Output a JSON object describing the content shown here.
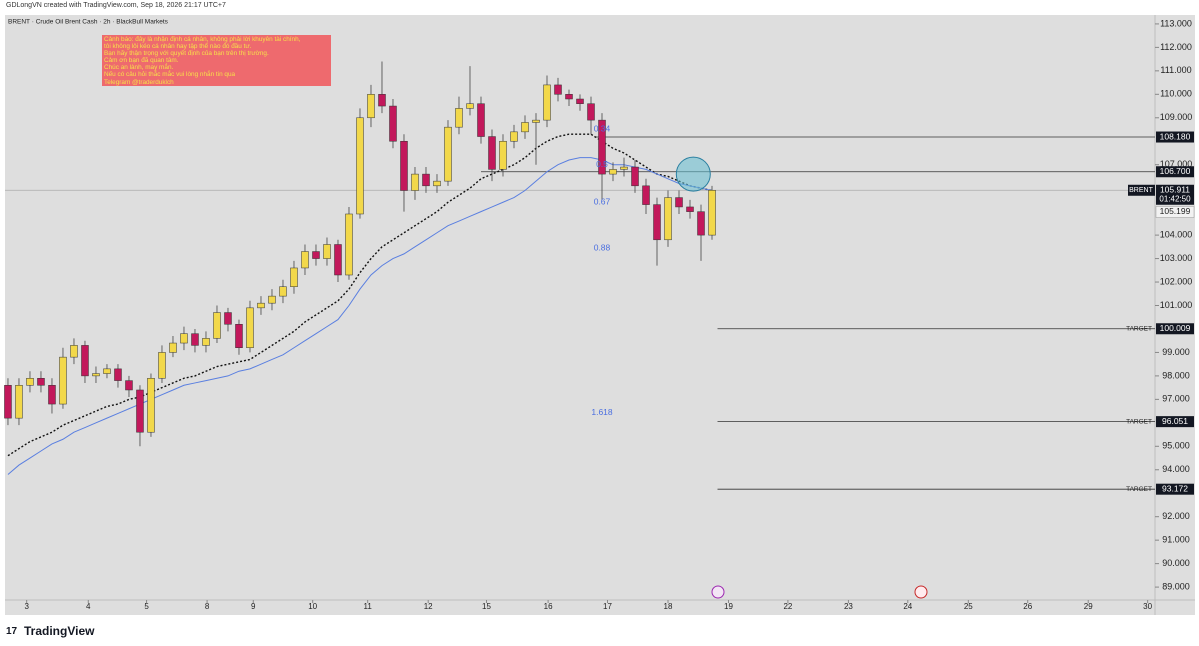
{
  "header": "GDLongVN created with TradingView.com, Sep 18, 2026 21:17 UTC+7",
  "footer": "TradingView",
  "chart_data": {
    "type": "candlestick",
    "title": "BRENT · Crude Oil Brent Cash · 2h · BlackBull Markets",
    "note": [
      "Cảnh báo: đây là nhận định cá nhân, không phải lời khuyên tài chính,",
      "tôi không lôi kéo cá nhân hay tập thể nào đó đầu tư.",
      "Bạn hãy thận trọng với quyết định của bạn trên thị trường.",
      "Cảm ơn bạn đã quan tâm.",
      "Chúc an lành, may mắn.",
      "Nếu có câu hỏi thắc mắc vui lòng nhắn tin qua",
      "Telegram @traderduklch"
    ],
    "up_color": "#f2d84a",
    "down_color": "#c2185b",
    "open": [
      97.6,
      96.2,
      97.6,
      97.9,
      97.6,
      96.8,
      98.8,
      99.3,
      98.0,
      98.1,
      98.3,
      97.8,
      97.4,
      95.6,
      97.9,
      99.0,
      99.4,
      99.8,
      99.3,
      99.6,
      100.7,
      100.2,
      99.2,
      100.9,
      101.1,
      101.4,
      101.8,
      102.6,
      103.3,
      103.0,
      103.6,
      102.3,
      104.9,
      109.0,
      110.0,
      109.5,
      108.0,
      105.9,
      106.6,
      106.1,
      106.3,
      108.6,
      109.4,
      109.6,
      108.2,
      106.8,
      108.0,
      108.4,
      108.8,
      108.9,
      110.4,
      110.0,
      109.8,
      109.6,
      108.9,
      106.6,
      106.8,
      106.9,
      106.1,
      105.3,
      103.8,
      105.6,
      105.2,
      105.0,
      104.0
    ],
    "high": [
      97.9,
      97.9,
      98.2,
      98.2,
      97.9,
      99.2,
      99.6,
      99.5,
      98.4,
      98.5,
      98.5,
      98.0,
      97.6,
      98.1,
      99.3,
      99.7,
      100.1,
      100.0,
      99.9,
      101.0,
      100.9,
      100.4,
      101.2,
      101.4,
      101.7,
      102.1,
      102.9,
      103.6,
      103.6,
      103.9,
      103.8,
      105.2,
      109.4,
      110.4,
      111.4,
      109.8,
      108.3,
      106.9,
      106.9,
      106.6,
      108.9,
      109.9,
      111.2,
      109.9,
      108.5,
      108.3,
      108.7,
      109.1,
      109.2,
      110.8,
      110.7,
      110.2,
      110.0,
      109.9,
      109.2,
      107.1,
      107.3,
      107.2,
      106.4,
      105.6,
      105.9,
      105.9,
      105.5,
      105.3,
      106.1
    ],
    "low": [
      95.9,
      95.9,
      97.3,
      97.3,
      96.4,
      96.6,
      98.5,
      97.7,
      97.7,
      97.9,
      97.5,
      97.1,
      95.0,
      95.4,
      97.7,
      98.8,
      99.1,
      99.0,
      99.0,
      99.4,
      99.9,
      98.9,
      99.0,
      100.6,
      100.8,
      101.1,
      101.5,
      102.3,
      102.7,
      102.7,
      102.0,
      102.1,
      104.7,
      108.6,
      109.2,
      107.7,
      105.0,
      105.5,
      105.8,
      105.8,
      106.1,
      108.3,
      109.1,
      107.9,
      106.3,
      106.5,
      107.7,
      108.1,
      107.0,
      108.6,
      109.7,
      109.5,
      109.3,
      108.3,
      105.5,
      106.3,
      106.5,
      105.8,
      104.9,
      102.7,
      103.5,
      104.9,
      104.7,
      102.9,
      103.8
    ],
    "close": [
      96.2,
      97.6,
      97.9,
      97.6,
      96.8,
      98.8,
      99.3,
      98.0,
      98.1,
      98.3,
      97.8,
      97.4,
      95.6,
      97.9,
      99.0,
      99.4,
      99.8,
      99.3,
      99.6,
      100.7,
      100.2,
      99.2,
      100.9,
      101.1,
      101.4,
      101.8,
      102.6,
      103.3,
      103.0,
      103.6,
      102.3,
      104.9,
      109.0,
      110.0,
      109.5,
      108.0,
      105.9,
      106.6,
      106.1,
      106.3,
      108.6,
      109.4,
      109.6,
      108.2,
      106.8,
      108.0,
      108.4,
      108.8,
      108.9,
      110.4,
      110.0,
      109.8,
      109.6,
      108.9,
      106.6,
      106.8,
      106.9,
      106.1,
      105.3,
      103.8,
      105.6,
      105.2,
      105.0,
      104.0,
      105.911
    ],
    "lines": [
      {
        "color": "#111111",
        "style": "dotted",
        "values": [
          94.6,
          94.9,
          95.2,
          95.4,
          95.6,
          95.9,
          96.1,
          96.3,
          96.5,
          96.7,
          96.8,
          97.0,
          97.1,
          97.3,
          97.5,
          97.7,
          97.9,
          98.0,
          98.2,
          98.4,
          98.5,
          98.6,
          98.7,
          99.0,
          99.3,
          99.6,
          99.9,
          100.3,
          100.6,
          100.9,
          101.2,
          101.7,
          102.4,
          103.0,
          103.5,
          103.8,
          104.1,
          104.4,
          104.7,
          105.0,
          105.4,
          105.7,
          106.0,
          106.4,
          106.6,
          106.8,
          107.0,
          107.3,
          107.7,
          108.0,
          108.2,
          108.3,
          108.3,
          108.3,
          108.0,
          107.7,
          107.5,
          107.2,
          106.9,
          106.6,
          106.5,
          106.3,
          106.1,
          106.0,
          105.9
        ]
      },
      {
        "color": "#5a7fe0",
        "style": "solid",
        "values": [
          93.8,
          94.2,
          94.5,
          94.8,
          95.1,
          95.3,
          95.6,
          95.8,
          96.0,
          96.2,
          96.4,
          96.6,
          96.8,
          97.0,
          97.2,
          97.4,
          97.6,
          97.7,
          97.8,
          97.9,
          98.0,
          98.2,
          98.3,
          98.5,
          98.7,
          98.9,
          99.2,
          99.5,
          99.8,
          100.1,
          100.4,
          101.0,
          101.7,
          102.3,
          102.7,
          103.0,
          103.2,
          103.5,
          103.8,
          104.1,
          104.4,
          104.6,
          104.8,
          105.0,
          105.2,
          105.4,
          105.6,
          105.9,
          106.3,
          106.7,
          107.0,
          107.2,
          107.3,
          107.3,
          107.2,
          107.0,
          107.0,
          106.9,
          106.8,
          106.6,
          106.4,
          106.2,
          106.1,
          106.0,
          105.9
        ]
      }
    ],
    "levels": [
      {
        "price": {
          "value": 108.18,
          "label": "108.180"
        },
        "x_start": 53.3
      },
      {
        "price": {
          "value": 106.7,
          "label": "106.700"
        },
        "x_start": 43.0
      },
      {
        "price": 100.009,
        "x_start": 64.5,
        "name": "TARGET"
      },
      {
        "price": 96.051,
        "x_start": 64.5,
        "name": "TARGET"
      },
      {
        "price": 93.172,
        "x_start": 64.5,
        "name": "TARGET"
      }
    ],
    "fib_x": 54.0,
    "fib_levels": [
      {
        "level": 0.34,
        "price": 108.52
      },
      {
        "level": 0.5,
        "price": 106.99
      },
      {
        "level": 0.67,
        "price": 105.41
      },
      {
        "level": 0.88,
        "price": 103.45
      },
      {
        "level": 1.618,
        "price": 96.42
      }
    ],
    "highlight": {
      "x": 62.3,
      "price": 106.6
    },
    "symbol_tag": "BRENT",
    "last_price": 105.911,
    "countdown": "01:42:50",
    "prev_price": 105.199,
    "ylim": [
      88.45,
      113.38
    ],
    "yticks": [
      {
        "value": 113,
        "label": "113.000"
      },
      {
        "value": 112,
        "label": "112.000"
      },
      {
        "value": 111,
        "label": "111.000"
      },
      {
        "value": 110,
        "label": "110.000"
      },
      {
        "value": 109,
        "label": "109.000"
      },
      {
        "value": 107,
        "label": "107.000"
      },
      {
        "value": 104,
        "label": "104.000"
      },
      {
        "value": 103,
        "label": "103.000"
      },
      {
        "value": 102,
        "label": "102.000"
      },
      {
        "value": 101,
        "label": "101.000"
      },
      {
        "value": 99,
        "label": "99.000"
      },
      {
        "value": 98,
        "label": "98.000"
      },
      {
        "value": 97,
        "label": "97.000"
      },
      {
        "value": 95,
        "label": "95.000"
      },
      {
        "value": 94,
        "label": "94.000"
      },
      {
        "value": 92,
        "label": "92.000"
      },
      {
        "value": 91,
        "label": "91.000"
      },
      {
        "value": 90,
        "label": "90.000"
      },
      {
        "value": 89,
        "label": "89.000"
      }
    ],
    "xlim": [
      -0.27,
      104.27
    ],
    "xticks": [
      {
        "value": 1.7,
        "label": "3"
      },
      {
        "value": 7.3,
        "label": "4"
      },
      {
        "value": 12.6,
        "label": "5"
      },
      {
        "value": 18.1,
        "label": "8"
      },
      {
        "value": 22.3,
        "label": "9"
      },
      {
        "value": 27.7,
        "label": "10"
      },
      {
        "value": 32.7,
        "label": "11"
      },
      {
        "value": 38.2,
        "label": "12"
      },
      {
        "value": 43.5,
        "label": "15"
      },
      {
        "value": 49.1,
        "label": "16"
      },
      {
        "value": 54.5,
        "label": "17"
      },
      {
        "value": 60.0,
        "label": "18"
      },
      {
        "value": 65.5,
        "label": "19"
      },
      {
        "value": 70.9,
        "label": "22"
      },
      {
        "value": 76.4,
        "label": "23"
      },
      {
        "value": 81.8,
        "label": "24"
      },
      {
        "value": 87.3,
        "label": "25"
      },
      {
        "value": 92.7,
        "label": "26"
      },
      {
        "value": 98.2,
        "label": "29"
      },
      {
        "value": 103.6,
        "label": "30"
      }
    ],
    "grid": false
  }
}
